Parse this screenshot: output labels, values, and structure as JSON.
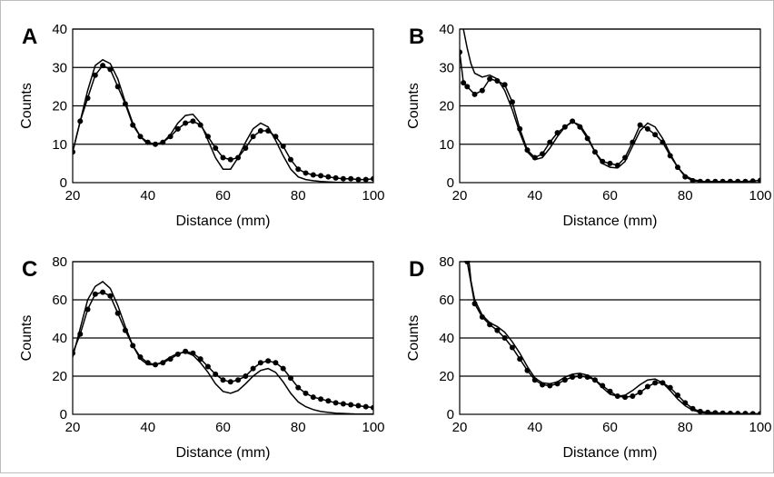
{
  "chart_data": [
    {
      "type": "line",
      "panel_label": "A",
      "xlabel": "Distance  (mm)",
      "ylabel": "Counts",
      "xlim": [
        20,
        100
      ],
      "ylim": [
        0,
        40
      ],
      "xticks": [
        20,
        40,
        60,
        80,
        100
      ],
      "yticks": [
        0,
        10,
        20,
        30,
        40
      ],
      "grid": "horizontal",
      "series": [
        {
          "style": "line-with-dots",
          "x": [
            20,
            22,
            24,
            26,
            28,
            30,
            32,
            34,
            36,
            38,
            40,
            42,
            44,
            46,
            48,
            50,
            52,
            54,
            56,
            58,
            60,
            62,
            64,
            66,
            68,
            70,
            72,
            74,
            76,
            78,
            80,
            82,
            84,
            86,
            88,
            90,
            92,
            94,
            96,
            98,
            100
          ],
          "y": [
            8,
            16,
            22,
            28,
            30.5,
            29.5,
            25,
            20.5,
            15,
            12,
            10.5,
            10,
            10.5,
            12,
            14,
            15.5,
            16,
            15,
            12,
            9,
            6.5,
            6,
            6.5,
            9,
            12,
            13.5,
            13.5,
            12,
            9.5,
            6,
            3.5,
            2.5,
            2,
            1.8,
            1.5,
            1.2,
            1,
            1,
            0.8,
            0.8,
            1
          ]
        },
        {
          "style": "line",
          "x": [
            20,
            22,
            24,
            26,
            28,
            30,
            32,
            34,
            36,
            38,
            40,
            42,
            44,
            46,
            48,
            50,
            52,
            54,
            56,
            58,
            60,
            62,
            64,
            66,
            68,
            70,
            72,
            74,
            76,
            78,
            80,
            82,
            84,
            86,
            88,
            90,
            95,
            100
          ],
          "y": [
            8,
            16,
            24,
            30.5,
            32,
            31,
            27,
            21,
            15.5,
            12,
            10,
            10,
            10.5,
            12.5,
            15.5,
            17.5,
            17.8,
            15.5,
            11,
            6.5,
            3.5,
            3.5,
            6.5,
            10.5,
            14,
            15.5,
            14.5,
            11,
            7,
            3.5,
            1.5,
            0.8,
            0.5,
            0.3,
            0.2,
            0.1,
            0,
            0
          ]
        }
      ]
    },
    {
      "type": "line",
      "panel_label": "B",
      "xlabel": "Distance  (mm)",
      "ylabel": "Counts",
      "xlim": [
        20,
        100
      ],
      "ylim": [
        0,
        40
      ],
      "xticks": [
        20,
        40,
        60,
        80,
        100
      ],
      "yticks": [
        0,
        10,
        20,
        30,
        40
      ],
      "grid": "horizontal",
      "series": [
        {
          "style": "line-with-dots",
          "x": [
            20,
            21,
            22,
            24,
            26,
            28,
            30,
            32,
            34,
            36,
            38,
            40,
            42,
            44,
            46,
            48,
            50,
            52,
            54,
            56,
            58,
            60,
            62,
            64,
            66,
            68,
            70,
            72,
            74,
            76,
            78,
            80,
            82,
            84,
            86,
            88,
            90,
            92,
            94,
            96,
            98,
            100
          ],
          "y": [
            34,
            26,
            25,
            23,
            24,
            27,
            26.5,
            25.5,
            21,
            14,
            8.5,
            6.5,
            7.5,
            10.5,
            13,
            14.5,
            16,
            14.5,
            11.5,
            8,
            5.5,
            5,
            4.5,
            6.5,
            10.5,
            15,
            14,
            12.5,
            10.5,
            7,
            4,
            1.5,
            0.5,
            0.3,
            0.3,
            0.3,
            0.3,
            0.3,
            0.3,
            0.3,
            0.4,
            0.6
          ]
        },
        {
          "style": "line",
          "x": [
            21,
            22,
            23,
            24,
            26,
            28,
            30,
            32,
            34,
            36,
            38,
            40,
            42,
            44,
            46,
            48,
            50,
            52,
            54,
            56,
            58,
            60,
            62,
            64,
            66,
            68,
            70,
            72,
            74,
            76,
            78,
            80,
            82,
            84,
            86,
            90,
            95,
            100
          ],
          "y": [
            40,
            35,
            31,
            28.5,
            27.5,
            28,
            27,
            24,
            19,
            13,
            8,
            6,
            6.5,
            9,
            12,
            14.5,
            15.8,
            15,
            12,
            8,
            5,
            4,
            3.8,
            5.5,
            9.5,
            13.5,
            15.5,
            14.5,
            11.5,
            7.5,
            4,
            1.8,
            0.8,
            0.4,
            0.2,
            0.1,
            0,
            0
          ]
        }
      ]
    },
    {
      "type": "line",
      "panel_label": "C",
      "xlabel": "Distance  (mm)",
      "ylabel": "Counts",
      "xlim": [
        20,
        100
      ],
      "ylim": [
        0,
        80
      ],
      "xticks": [
        20,
        40,
        60,
        80,
        100
      ],
      "yticks": [
        0,
        20,
        40,
        60,
        80
      ],
      "grid": "horizontal",
      "series": [
        {
          "style": "line-with-dots",
          "x": [
            20,
            22,
            24,
            26,
            28,
            30,
            32,
            34,
            36,
            38,
            40,
            42,
            44,
            46,
            48,
            50,
            52,
            54,
            56,
            58,
            60,
            62,
            64,
            66,
            68,
            70,
            72,
            74,
            76,
            78,
            80,
            82,
            84,
            86,
            88,
            90,
            92,
            94,
            96,
            98,
            100
          ],
          "y": [
            32,
            42,
            55,
            63,
            64,
            62,
            53,
            44,
            36,
            30,
            27,
            26,
            27,
            29,
            31.5,
            33,
            32,
            29,
            25,
            21,
            18,
            17,
            18,
            20,
            24,
            27,
            28,
            27,
            24,
            19,
            14,
            11,
            9,
            8,
            7,
            6,
            5.5,
            5,
            4.5,
            4,
            3.5
          ]
        },
        {
          "style": "line",
          "x": [
            20,
            22,
            24,
            26,
            28,
            30,
            32,
            34,
            36,
            38,
            40,
            42,
            44,
            46,
            48,
            50,
            52,
            54,
            56,
            58,
            60,
            62,
            64,
            66,
            68,
            70,
            72,
            74,
            76,
            78,
            80,
            82,
            84,
            86,
            88,
            90,
            95,
            100
          ],
          "y": [
            30,
            45,
            60,
            67,
            69.5,
            66,
            57,
            46,
            36,
            29,
            26,
            26,
            27.5,
            30,
            32,
            32.5,
            31,
            27,
            22,
            16,
            12,
            11,
            12.5,
            16,
            20,
            23,
            24,
            22,
            17,
            11,
            6.5,
            4,
            2.5,
            1.5,
            1,
            0.6,
            0.2,
            0.1
          ]
        }
      ]
    },
    {
      "type": "line",
      "panel_label": "D",
      "xlabel": "Distance  (mm)",
      "ylabel": "Counts",
      "xlim": [
        20,
        100
      ],
      "ylim": [
        0,
        80
      ],
      "xticks": [
        20,
        40,
        60,
        80,
        100
      ],
      "yticks": [
        0,
        20,
        40,
        60,
        80
      ],
      "grid": "horizontal",
      "series": [
        {
          "style": "line-with-dots",
          "x": [
            22,
            24,
            26,
            28,
            30,
            32,
            34,
            36,
            38,
            40,
            42,
            44,
            46,
            48,
            50,
            52,
            54,
            56,
            58,
            60,
            62,
            64,
            66,
            68,
            70,
            72,
            74,
            76,
            78,
            80,
            82,
            84,
            86,
            88,
            90,
            92,
            94,
            96,
            98,
            100
          ],
          "y": [
            80,
            58,
            51,
            47,
            44,
            40,
            35,
            29,
            23,
            18,
            15.5,
            15,
            16,
            18,
            19.5,
            20,
            19.5,
            18,
            15,
            12,
            9.5,
            9,
            9.5,
            11.5,
            14.5,
            16.5,
            16.5,
            14,
            10,
            6,
            3,
            1.5,
            1,
            0.8,
            0.6,
            0.5,
            0.4,
            0.4,
            0.3,
            0.3
          ]
        },
        {
          "style": "line",
          "x": [
            22.5,
            23,
            24,
            26,
            28,
            30,
            32,
            34,
            36,
            38,
            40,
            42,
            44,
            46,
            48,
            50,
            52,
            54,
            56,
            58,
            60,
            62,
            64,
            66,
            68,
            70,
            72,
            74,
            76,
            78,
            80,
            82,
            84,
            86,
            88,
            90,
            95,
            100
          ],
          "y": [
            80,
            70,
            60,
            52,
            48,
            46,
            43,
            38,
            32,
            25,
            19,
            16.5,
            16,
            17,
            19.5,
            21,
            21.5,
            20.5,
            18,
            14,
            10.5,
            9.5,
            10,
            12.5,
            15.5,
            18,
            18.5,
            16.5,
            12.5,
            8,
            4.5,
            2.2,
            1,
            0.5,
            0.3,
            0.2,
            0.1,
            0
          ]
        }
      ]
    }
  ]
}
